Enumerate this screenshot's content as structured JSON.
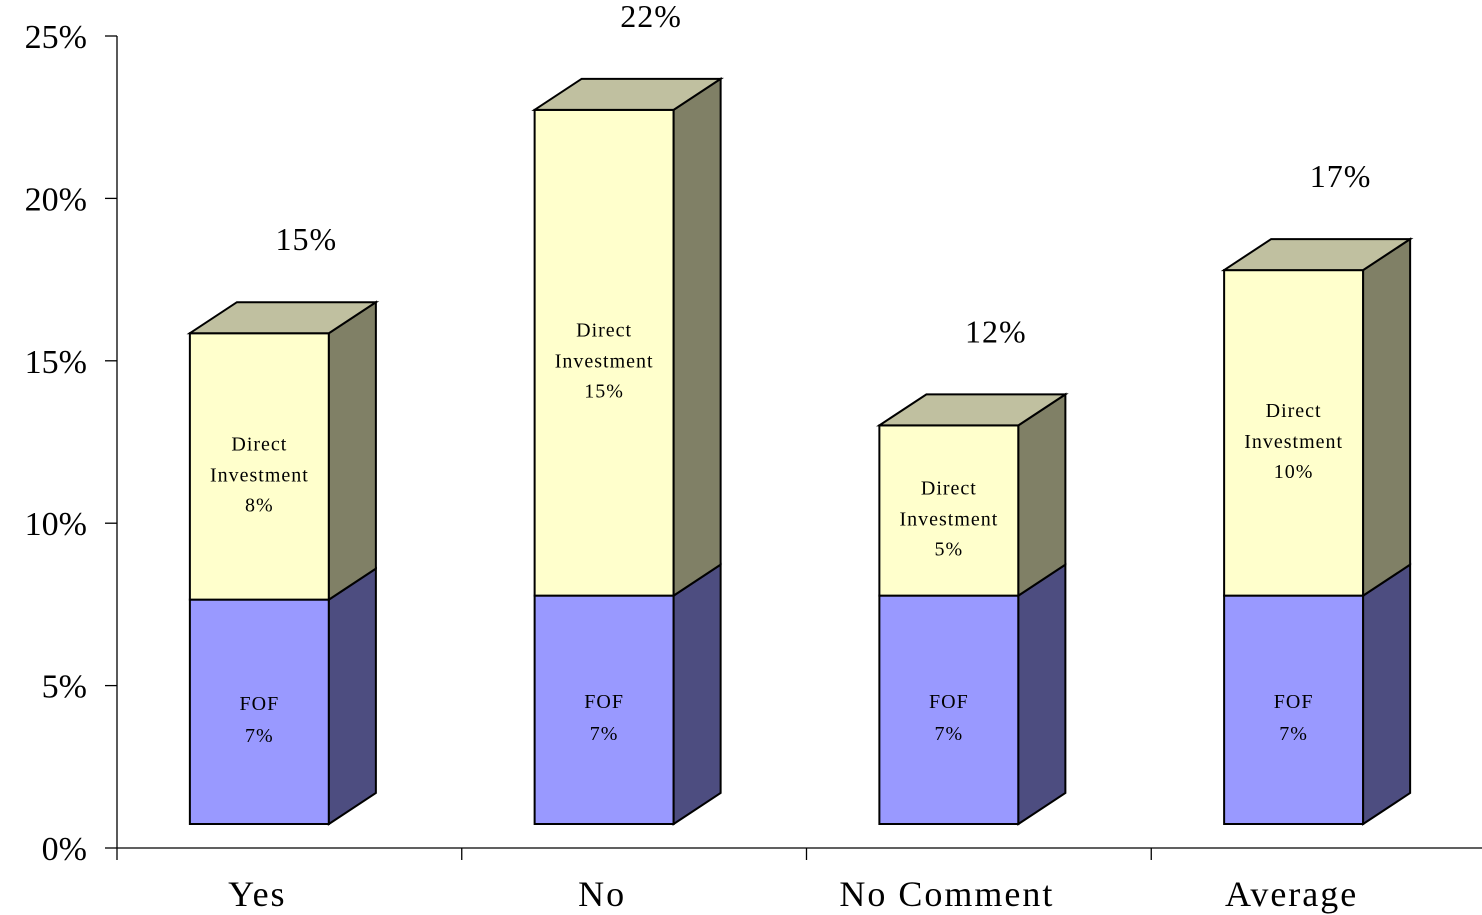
{
  "chart_data": {
    "type": "bar",
    "stacked": true,
    "style": "3d",
    "categories": [
      "Yes",
      "No",
      "No Comment",
      "Average"
    ],
    "series": [
      {
        "name": "FOF",
        "values": [
          7,
          7,
          7,
          7
        ]
      },
      {
        "name": "Direct Investment",
        "values": [
          8,
          15,
          5,
          10
        ]
      }
    ],
    "totals": [
      15,
      22,
      12,
      17
    ],
    "segment_labels": {
      "FOF": [
        "FOF 7%",
        "FOF 7%",
        "FOF 7%",
        "FOF 7%"
      ],
      "Direct Investment": [
        "Direct Investment 8%",
        "Direct Investment 15%",
        "Direct Investment 5%",
        "Direct Investment 10%"
      ]
    },
    "total_labels": [
      "15%",
      "22%",
      "12%",
      "17%"
    ],
    "y_ticks": [
      "0%",
      "5%",
      "10%",
      "15%",
      "20%",
      "25%"
    ],
    "ylim": [
      0,
      25
    ],
    "colors": {
      "FOF_front": "#9999ff",
      "FOF_side": "#4d4d80",
      "DI_front": "#ffffcc",
      "DI_side": "#808066",
      "DI_top": "#c0c0a0"
    },
    "grid": false,
    "legend": "none"
  }
}
